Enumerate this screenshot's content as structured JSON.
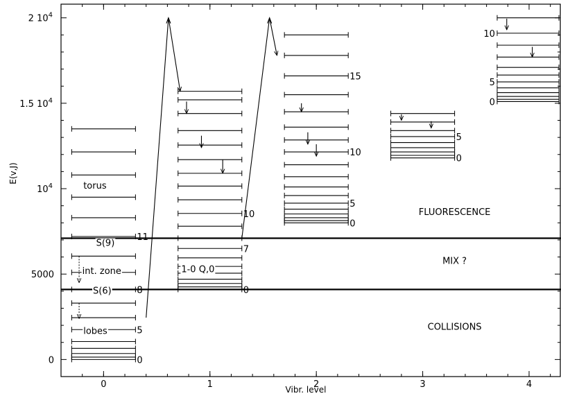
{
  "chart_data": {
    "type": "energy-level-diagram",
    "xlabel": "Vibr. level",
    "ylabel": "E(v,J)",
    "xlim": [
      -0.4,
      4.3
    ],
    "ylim": [
      -1000,
      20800
    ],
    "x_ticks": [
      {
        "value": 0,
        "label": "0"
      },
      {
        "value": 1,
        "label": "1"
      },
      {
        "value": 2,
        "label": "2"
      },
      {
        "value": 3,
        "label": "3"
      },
      {
        "value": 4,
        "label": "4"
      }
    ],
    "y_ticks": [
      {
        "value": 0,
        "label": "0"
      },
      {
        "value": 5000,
        "label": "5000"
      },
      {
        "value": 10000,
        "label": "10",
        "exp": "4"
      },
      {
        "value": 15000,
        "label": "1.5 10",
        "exp": "4"
      },
      {
        "value": 20000,
        "label": "2 10",
        "exp": "4"
      }
    ],
    "ladders": [
      {
        "v": 0,
        "energies": [
          0,
          140,
          350,
          650,
          1050,
          1750,
          2450,
          3300,
          4100,
          5100,
          6050,
          7200,
          8300,
          9500,
          10800,
          12150,
          13500
        ],
        "labels": [
          {
            "j": 0,
            "text": "0"
          },
          {
            "j": 5,
            "text": "5"
          },
          {
            "j": 8,
            "text": "8"
          },
          {
            "j": 11,
            "text": "11"
          }
        ]
      },
      {
        "v": 1,
        "energies": [
          4100,
          4250,
          4450,
          4700,
          5050,
          5450,
          5950,
          6500,
          7100,
          7800,
          8550,
          9350,
          10150,
          10900,
          11700,
          12550,
          13400,
          14400,
          15200,
          15700
        ],
        "labels": [
          {
            "j": 0,
            "text": "0"
          },
          {
            "j": 7,
            "text": "7"
          },
          {
            "j": 10,
            "text": "10"
          }
        ]
      },
      {
        "v": 2,
        "energies": [
          8000,
          8130,
          8300,
          8520,
          8800,
          9150,
          9600,
          10100,
          10700,
          11400,
          12150,
          12850,
          13600,
          14500,
          15500,
          16600,
          17800,
          19000
        ],
        "labels": [
          {
            "j": 0,
            "text": "0"
          },
          {
            "j": 5,
            "text": "5"
          },
          {
            "j": 10,
            "text": "10"
          },
          {
            "j": 15,
            "text": "15"
          }
        ]
      },
      {
        "v": 3,
        "energies": [
          11800,
          11950,
          12150,
          12400,
          12700,
          13050,
          13400,
          13900,
          14400
        ],
        "labels": [
          {
            "j": 0,
            "text": "0"
          },
          {
            "j": 5,
            "text": "5"
          }
        ]
      },
      {
        "v": 4,
        "energies": [
          15100,
          15230,
          15400,
          15620,
          15900,
          16250,
          16650,
          17100,
          17700,
          18400,
          19100,
          20000
        ],
        "labels": [
          {
            "j": 0,
            "text": "0"
          },
          {
            "j": 5,
            "text": "5"
          },
          {
            "j": 10,
            "text": "10"
          }
        ]
      }
    ],
    "boundaries": [
      7100,
      4100
    ],
    "zones": [
      {
        "text": "FLUORESCENCE",
        "x": 3.3,
        "y": 8450
      },
      {
        "text": "MIX ?",
        "x": 3.3,
        "y": 5600
      },
      {
        "text": "COLLISIONS",
        "x": 3.3,
        "y": 1750
      }
    ],
    "annotations": [
      {
        "text": "torus",
        "x": -0.19,
        "y": 10000
      },
      {
        "text": "S(9)",
        "x": -0.07,
        "y": 6650
      },
      {
        "text": "int. zone",
        "x": -0.2,
        "y": 5000
      },
      {
        "text": "S(6)",
        "x": -0.1,
        "y": 3850
      },
      {
        "text": "lobes",
        "x": -0.19,
        "y": 1500
      },
      {
        "text": "1-0 Q,0",
        "x": 0.73,
        "y": 5100
      }
    ],
    "pump_paths": [
      [
        [
          0.4,
          2450
        ],
        [
          0.61,
          20000
        ],
        [
          0.72,
          15700
        ]
      ],
      [
        [
          1.3,
          7100
        ],
        [
          1.56,
          20000
        ],
        [
          1.63,
          17800
        ]
      ]
    ],
    "collision_arrows": [
      {
        "x": -0.23,
        "from": 6050,
        "to": 4500
      },
      {
        "x": -0.23,
        "from": 3300,
        "to": 2400
      }
    ],
    "cascade_arrows": [
      {
        "x": 0.78,
        "from": 15100,
        "to": 14400
      },
      {
        "x": 0.92,
        "from": 13100,
        "to": 12400
      },
      {
        "x": 1.12,
        "from": 11700,
        "to": 10900
      },
      {
        "x": 1.86,
        "from": 15000,
        "to": 14500
      },
      {
        "x": 1.92,
        "from": 13300,
        "to": 12600
      },
      {
        "x": 2.0,
        "from": 12600,
        "to": 11900
      },
      {
        "x": 2.8,
        "from": 14350,
        "to": 14000
      },
      {
        "x": 3.08,
        "from": 13950,
        "to": 13550
      },
      {
        "x": 3.79,
        "from": 19950,
        "to": 19300
      },
      {
        "x": 4.03,
        "from": 18300,
        "to": 17700
      }
    ]
  }
}
